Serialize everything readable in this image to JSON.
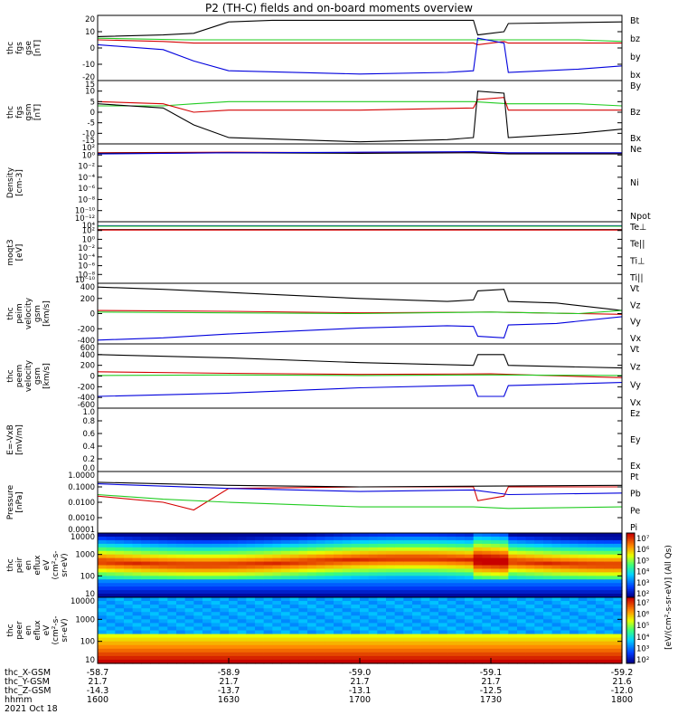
{
  "title": "P2 (TH-C) fields and on-board moments overview",
  "colors": {
    "black": "#000000",
    "red": "#d40000",
    "green": "#22cc22",
    "blue": "#0000dd"
  },
  "chart_data": [
    {
      "type": "line",
      "ylabel": [
        "thc",
        "fgs",
        "gse",
        "[nT]"
      ],
      "ylim": [
        -20,
        20
      ],
      "ticks": [
        "20",
        "10",
        "0",
        "-10",
        "-20"
      ],
      "legend": [
        {
          "name": "Bt",
          "color": "black"
        },
        {
          "name": "bz",
          "color": "red"
        },
        {
          "name": "by",
          "color": "green"
        },
        {
          "name": "bx",
          "color": "blue"
        }
      ],
      "series": [
        {
          "name": "Bt",
          "color": "black",
          "x": [
            1600,
            1615,
            1622,
            1630,
            1640,
            1700,
            1720,
            1726,
            1727,
            1733,
            1734,
            1800
          ],
          "y": [
            7,
            8,
            9,
            16,
            17,
            17,
            17,
            17,
            8,
            10,
            15,
            16
          ]
        },
        {
          "name": "bz",
          "color": "red",
          "x": [
            1600,
            1615,
            1622,
            1630,
            1700,
            1726,
            1727,
            1733,
            1734,
            1800
          ],
          "y": [
            5,
            4,
            3,
            3,
            3,
            3,
            2,
            4,
            3,
            3
          ]
        },
        {
          "name": "by",
          "color": "green",
          "x": [
            1600,
            1620,
            1630,
            1700,
            1720,
            1726,
            1734,
            1750,
            1800
          ],
          "y": [
            6,
            5,
            5,
            5,
            5,
            5,
            5,
            5,
            4
          ]
        },
        {
          "name": "bx",
          "color": "blue",
          "x": [
            1600,
            1615,
            1622,
            1630,
            1700,
            1720,
            1726,
            1727,
            1733,
            1734,
            1750,
            1800
          ],
          "y": [
            2,
            -1,
            -8,
            -14,
            -16,
            -15,
            -14,
            6,
            3,
            -15,
            -13,
            -11
          ]
        }
      ]
    },
    {
      "type": "line",
      "ylabel": [
        "thc",
        "fgs",
        "gsm",
        "[nT]"
      ],
      "ylim": [
        -15,
        15
      ],
      "ticks": [
        "15",
        "10",
        "5",
        "0",
        "-5",
        "-10",
        "-15"
      ],
      "legend": [
        {
          "name": "By",
          "color": "green"
        },
        {
          "name": "Bz",
          "color": "red"
        },
        {
          "name": "Bx",
          "color": "black"
        }
      ],
      "series": [
        {
          "name": "By",
          "color": "green",
          "x": [
            1600,
            1615,
            1622,
            1630,
            1700,
            1726,
            1734,
            1750,
            1800
          ],
          "y": [
            3,
            3,
            4,
            5,
            5,
            5,
            4,
            4,
            3
          ]
        },
        {
          "name": "Bz",
          "color": "red",
          "x": [
            1600,
            1615,
            1622,
            1630,
            1700,
            1726,
            1727,
            1733,
            1734,
            1800
          ],
          "y": [
            5,
            4,
            0,
            1,
            1,
            2,
            6,
            7,
            1,
            1
          ]
        },
        {
          "name": "Bx",
          "color": "black",
          "x": [
            1600,
            1615,
            1622,
            1630,
            1700,
            1720,
            1726,
            1727,
            1733,
            1734,
            1750,
            1800
          ],
          "y": [
            4,
            2,
            -6,
            -12,
            -14,
            -13,
            -12,
            10,
            9,
            -12,
            -10,
            -8
          ]
        }
      ]
    },
    {
      "type": "line",
      "ylabel": [
        "Density",
        "[cm-3]"
      ],
      "log": true,
      "ylim": [
        -12,
        2
      ],
      "ticks": [
        "10²",
        "10⁰",
        "10⁻²",
        "10⁻⁴",
        "10⁻⁶",
        "10⁻⁸",
        "10⁻¹⁰",
        "10⁻¹²"
      ],
      "legend": [
        {
          "name": "Ne",
          "color": "red"
        },
        {
          "name": "Ni",
          "color": "black"
        },
        {
          "name": "Npot",
          "color": "blue"
        }
      ],
      "series": [
        {
          "name": "Ne",
          "color": "red",
          "x": [
            1600,
            1630,
            1700,
            1726,
            1734,
            1800
          ],
          "y": [
            0.4,
            0.5,
            0.4,
            0.5,
            0.3,
            0.3
          ]
        },
        {
          "name": "Ni",
          "color": "black",
          "x": [
            1600,
            1630,
            1700,
            1726,
            1734,
            1800
          ],
          "y": [
            0.3,
            0.4,
            0.3,
            0.4,
            0.2,
            0.2
          ]
        },
        {
          "name": "Npot",
          "color": "blue",
          "x": [
            1600,
            1630,
            1700,
            1726,
            1734,
            1800
          ],
          "y": [
            0.2,
            0.4,
            0.5,
            0.6,
            0.4,
            0.4
          ]
        }
      ]
    },
    {
      "type": "line",
      "ylabel": [
        "moqt3",
        "[eV]"
      ],
      "log": true,
      "ylim": [
        -10,
        4
      ],
      "ticks": [
        "10⁴",
        "10²",
        "10⁰",
        "10⁻²",
        "10⁻⁴",
        "10⁻⁶",
        "10⁻⁸",
        "10⁻¹⁰"
      ],
      "legend": [
        {
          "name": "Te⊥",
          "color": "red"
        },
        {
          "name": "Te||",
          "color": "black"
        },
        {
          "name": "Ti⊥",
          "color": "blue"
        },
        {
          "name": "Ti||",
          "color": "green"
        }
      ],
      "series": [
        {
          "name": "Ti⊥",
          "color": "blue",
          "x": [
            1600,
            1700,
            1800
          ],
          "y": [
            3.1,
            3.1,
            3.1
          ]
        },
        {
          "name": "Ti||",
          "color": "green",
          "x": [
            1600,
            1700,
            1800
          ],
          "y": [
            3.0,
            3.0,
            3.0
          ]
        },
        {
          "name": "Te||",
          "color": "black",
          "x": [
            1600,
            1700,
            1800
          ],
          "y": [
            2.2,
            2.2,
            2.2
          ]
        },
        {
          "name": "Te⊥",
          "color": "red",
          "x": [
            1600,
            1700,
            1800
          ],
          "y": [
            2.1,
            2.1,
            2.1
          ]
        }
      ]
    },
    {
      "type": "line",
      "ylabel": [
        "thc",
        "peim",
        "velocity",
        "gsm",
        "[km/s]"
      ],
      "ylim": [
        -400,
        400
      ],
      "ticks": [
        "400",
        "200",
        "0",
        "-200",
        "-400"
      ],
      "legend": [
        {
          "name": "Vt",
          "color": "black"
        },
        {
          "name": "Vz",
          "color": "red"
        },
        {
          "name": "Vy",
          "color": "green"
        },
        {
          "name": "Vx",
          "color": "blue"
        }
      ],
      "series": [
        {
          "name": "Vt",
          "color": "black",
          "x": [
            1600,
            1615,
            1630,
            1700,
            1720,
            1726,
            1727,
            1733,
            1734,
            1745,
            1800
          ],
          "y": [
            350,
            320,
            280,
            200,
            160,
            180,
            300,
            320,
            160,
            140,
            40
          ]
        },
        {
          "name": "Vz",
          "color": "red",
          "x": [
            1600,
            1630,
            1700,
            1730,
            1750,
            1800
          ],
          "y": [
            40,
            30,
            10,
            20,
            0,
            -10
          ]
        },
        {
          "name": "Vy",
          "color": "green",
          "x": [
            1600,
            1630,
            1700,
            1730,
            1750,
            1800
          ],
          "y": [
            20,
            10,
            0,
            20,
            0,
            40
          ]
        },
        {
          "name": "Vx",
          "color": "blue",
          "x": [
            1600,
            1615,
            1630,
            1700,
            1720,
            1726,
            1727,
            1733,
            1734,
            1745,
            1800
          ],
          "y": [
            -350,
            -320,
            -270,
            -190,
            -160,
            -170,
            -300,
            -320,
            -150,
            -130,
            -40
          ]
        }
      ]
    },
    {
      "type": "line",
      "ylabel": [
        "thc",
        "peem",
        "velocity",
        "gsm",
        "[km/s]"
      ],
      "ylim": [
        -600,
        600
      ],
      "ticks": [
        "600",
        "400",
        "200",
        "0",
        "-200",
        "-400",
        "-600"
      ],
      "legend": [
        {
          "name": "Vt",
          "color": "black"
        },
        {
          "name": "Vz",
          "color": "red"
        },
        {
          "name": "Vy",
          "color": "green"
        },
        {
          "name": "Vx",
          "color": "blue"
        }
      ],
      "series": [
        {
          "name": "Vt",
          "color": "black",
          "x": [
            1600,
            1630,
            1700,
            1726,
            1727,
            1733,
            1734,
            1800
          ],
          "y": [
            400,
            340,
            250,
            200,
            400,
            400,
            200,
            150
          ]
        },
        {
          "name": "Vz",
          "color": "red",
          "x": [
            1600,
            1630,
            1700,
            1730,
            1800
          ],
          "y": [
            80,
            50,
            30,
            40,
            -30
          ]
        },
        {
          "name": "Vy",
          "color": "green",
          "x": [
            1600,
            1630,
            1700,
            1730,
            1800
          ],
          "y": [
            10,
            20,
            10,
            20,
            10
          ]
        },
        {
          "name": "Vx",
          "color": "blue",
          "x": [
            1600,
            1630,
            1700,
            1726,
            1727,
            1733,
            1734,
            1800
          ],
          "y": [
            -380,
            -320,
            -220,
            -170,
            -380,
            -380,
            -180,
            -120
          ]
        }
      ]
    },
    {
      "type": "line",
      "ylabel": [
        "E=-VxB",
        "[mV/m]"
      ],
      "ylim": [
        0,
        1
      ],
      "ticks": [
        "1.0",
        "0.8",
        "0.6",
        "0.4",
        "0.2",
        "0.0"
      ],
      "legend": [
        {
          "name": "Ez",
          "color": "red"
        },
        {
          "name": "Ey",
          "color": "green"
        },
        {
          "name": "Ex",
          "color": "blue"
        }
      ],
      "series": []
    },
    {
      "type": "line",
      "ylabel": [
        "Pressure",
        "[nPa]"
      ],
      "log": true,
      "ylim": [
        -4,
        0
      ],
      "ticks": [
        "1.0000",
        "0.1000",
        "0.0100",
        "0.0010",
        "0.0001"
      ],
      "legend": [
        {
          "name": "Pt",
          "color": "black"
        },
        {
          "name": "Pb",
          "color": "red"
        },
        {
          "name": "Pe",
          "color": "green"
        },
        {
          "name": "Pi",
          "color": "blue"
        }
      ],
      "series": [
        {
          "name": "Pb",
          "color": "red",
          "x": [
            1600,
            1615,
            1622,
            1630,
            1700,
            1726,
            1727,
            1733,
            1734,
            1800
          ],
          "y": [
            -1.6,
            -2.0,
            -2.5,
            -1.1,
            -1.0,
            -1.0,
            -1.9,
            -1.6,
            -1.0,
            -1.0
          ]
        },
        {
          "name": "Pe",
          "color": "green",
          "x": [
            1600,
            1615,
            1630,
            1700,
            1726,
            1734,
            1800
          ],
          "y": [
            -1.5,
            -1.8,
            -2.0,
            -2.3,
            -2.3,
            -2.4,
            -2.3
          ]
        },
        {
          "name": "Pi",
          "color": "blue",
          "x": [
            1600,
            1630,
            1700,
            1726,
            1734,
            1800
          ],
          "y": [
            -0.8,
            -1.1,
            -1.3,
            -1.2,
            -1.5,
            -1.4
          ]
        },
        {
          "name": "Pt",
          "color": "black",
          "x": [
            1600,
            1630,
            1700,
            1800
          ],
          "y": [
            -0.7,
            -0.9,
            -1.0,
            -0.9
          ]
        }
      ]
    },
    {
      "type": "heatmap",
      "ylabel": [
        "thc",
        "peir",
        "en",
        "eflux",
        "eV",
        "(cm²-s-",
        "sr-eV)"
      ],
      "log": true,
      "ylim": [
        1,
        4
      ],
      "ticks": [
        "10000",
        "1000",
        "100",
        "10"
      ]
    },
    {
      "type": "heatmap",
      "ylabel": [
        "thc",
        "peer",
        "en",
        "eflux",
        "eV",
        "(cm²-s-",
        "sr-eV)"
      ],
      "log": true,
      "ylim": [
        1,
        4
      ],
      "ticks": [
        "10000",
        "1000",
        "100",
        "10"
      ]
    }
  ],
  "colorbar": {
    "label": "[eV/(cm²-s-sr-eV)] (All Qs)",
    "ticks": [
      "10⁷",
      "10⁶",
      "10⁵",
      "10⁴",
      "10³",
      "10²",
      "10⁷",
      "10⁶",
      "10⁵",
      "10⁴",
      "10³",
      "10²"
    ]
  },
  "xaxis": {
    "range": [
      1600,
      1800
    ],
    "rows": [
      {
        "label": "thc_X-GSM",
        "values": [
          "-58.7",
          "-58.9",
          "-59.0",
          "-59.1",
          "-59.2"
        ]
      },
      {
        "label": "thc_Y-GSM",
        "values": [
          "21.7",
          "21.7",
          "21.7",
          "21.7",
          "21.6"
        ]
      },
      {
        "label": "thc_Z-GSM",
        "values": [
          "-14.3",
          "-13.7",
          "-13.1",
          "-12.5",
          "-12.0"
        ]
      },
      {
        "label": "hhmm",
        "values": [
          "1600",
          "1630",
          "1700",
          "1730",
          "1800"
        ]
      }
    ],
    "date": "2021 Oct 18"
  }
}
